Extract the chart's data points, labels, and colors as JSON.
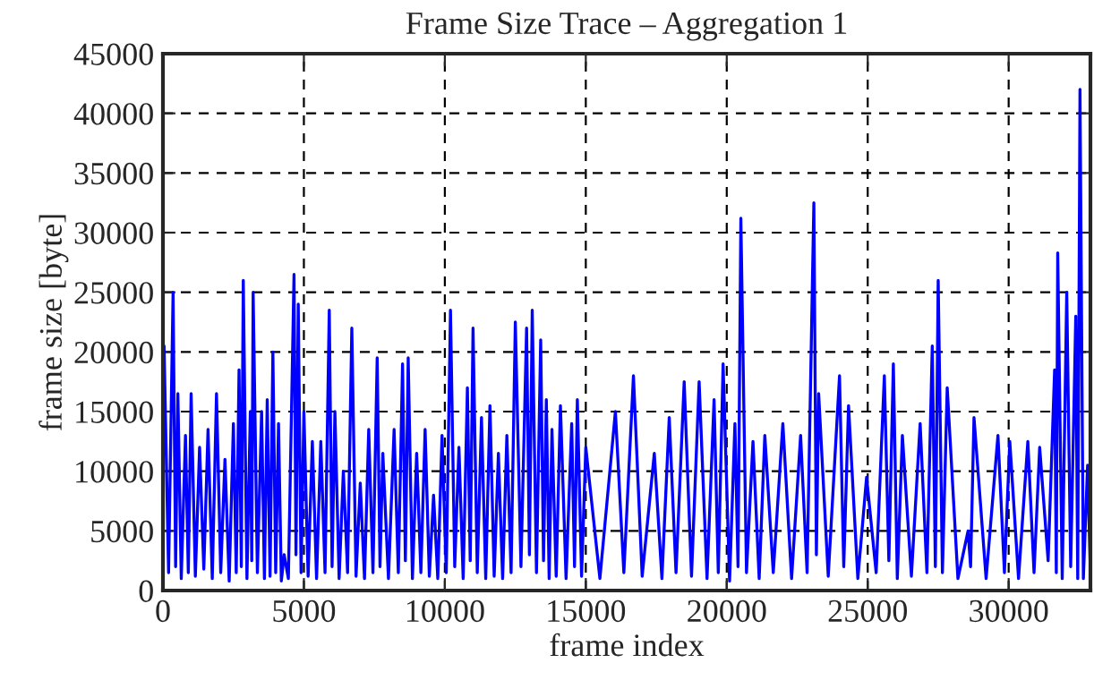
{
  "chart_data": {
    "type": "line",
    "title": "Frame Size Trace – Aggregation 1",
    "xlabel": "frame index",
    "ylabel": "frame size [byte]",
    "x": [
      40,
      200,
      360,
      450,
      530,
      650,
      800,
      900,
      1000,
      1150,
      1300,
      1450,
      1600,
      1750,
      1900,
      2050,
      2200,
      2350,
      2500,
      2600,
      2700,
      2780,
      2850,
      2980,
      3100,
      3150,
      3200,
      3350,
      3500,
      3600,
      3700,
      3800,
      3900,
      4000,
      4100,
      4200,
      4300,
      4450,
      4650,
      4720,
      4800,
      4900,
      5000,
      5150,
      5300,
      5450,
      5600,
      5750,
      5900,
      6000,
      6100,
      6250,
      6400,
      6550,
      6700,
      6850,
      7000,
      7150,
      7300,
      7450,
      7600,
      7700,
      7800,
      8000,
      8200,
      8350,
      8500,
      8600,
      8700,
      8850,
      9000,
      9150,
      9300,
      9450,
      9600,
      9750,
      9900,
      10050,
      10200,
      10350,
      10500,
      10650,
      10800,
      10900,
      11000,
      11150,
      11300,
      11450,
      11600,
      11750,
      11900,
      12050,
      12200,
      12350,
      12500,
      12700,
      12900,
      13000,
      13100,
      13250,
      13400,
      13500,
      13600,
      13700,
      13800,
      13950,
      14100,
      14300,
      14500,
      14600,
      14700,
      14850,
      15000,
      15500,
      16050,
      16350,
      16690,
      17000,
      17430,
      17700,
      17960,
      18200,
      18490,
      18750,
      19020,
      19300,
      19550,
      19700,
      19870,
      20100,
      20290,
      20400,
      20500,
      20700,
      20930,
      21150,
      21350,
      21650,
      21990,
      22300,
      22620,
      22850,
      23090,
      23180,
      23260,
      23600,
      24000,
      24150,
      24320,
      24650,
      24960,
      25300,
      25590,
      25750,
      25910,
      26050,
      26230,
      26550,
      26860,
      27100,
      27290,
      27400,
      27500,
      27650,
      27820,
      28200,
      28560,
      28650,
      28770,
      29200,
      29620,
      29850,
      30040,
      30350,
      30680,
      30900,
      31100,
      31400,
      31630,
      31690,
      31740,
      31900,
      32060,
      32200,
      32380,
      32450,
      32530,
      32650,
      32800,
      32900
    ],
    "series": [
      {
        "color": "#0000ff",
        "values": [
          20500,
          1500,
          25000,
          2000,
          16500,
          1000,
          13000,
          1500,
          16500,
          1200,
          12000,
          1800,
          13500,
          1000,
          16500,
          1500,
          11000,
          800,
          14000,
          1500,
          18500,
          2000,
          26000,
          1000,
          15000,
          2500,
          25000,
          1500,
          15000,
          1000,
          16000,
          1200,
          20000,
          1500,
          14000,
          800,
          3000,
          1000,
          26500,
          3000,
          24000,
          1500,
          15000,
          1200,
          12500,
          1000,
          12500,
          1500,
          23500,
          2000,
          15000,
          1000,
          10000,
          1500,
          22000,
          1200,
          9000,
          1000,
          13500,
          1500,
          19500,
          2000,
          11500,
          1000,
          13500,
          1500,
          19000,
          2500,
          19500,
          1000,
          11500,
          1500,
          13500,
          1200,
          8000,
          1000,
          13000,
          1500,
          23500,
          2000,
          12000,
          1000,
          17000,
          2500,
          22000,
          1500,
          14500,
          1000,
          15500,
          1200,
          11500,
          1000,
          13000,
          1500,
          22500,
          2000,
          22000,
          3000,
          23500,
          1500,
          21000,
          2500,
          16000,
          1000,
          13500,
          1200,
          15500,
          1000,
          14000,
          2000,
          16000,
          1200,
          12000,
          1000,
          15000,
          1500,
          18000,
          1200,
          11500,
          1000,
          14500,
          1500,
          17500,
          1200,
          17500,
          1000,
          16000,
          1500,
          19000,
          800,
          14000,
          2000,
          31200,
          1500,
          12500,
          1000,
          13000,
          1500,
          14000,
          1000,
          13000,
          1500,
          32500,
          3000,
          16500,
          1200,
          18000,
          2000,
          15500,
          1000,
          9500,
          1500,
          18000,
          2500,
          19000,
          1000,
          13000,
          1200,
          14000,
          1500,
          20500,
          2000,
          26000,
          1500,
          17000,
          1000,
          5000,
          2000,
          14500,
          1000,
          13000,
          1500,
          12500,
          1000,
          12500,
          1500,
          12000,
          2500,
          18500,
          1500,
          28300,
          1000,
          25000,
          2000,
          23000,
          1000,
          42000,
          1000,
          10500,
          1500
        ]
      }
    ],
    "xlim": [
      0,
      32900
    ],
    "xticks": [
      0,
      5000,
      10000,
      15000,
      20000,
      25000,
      30000
    ],
    "ylim": [
      0,
      45000
    ],
    "yticks": [
      0,
      5000,
      10000,
      15000,
      20000,
      25000,
      30000,
      35000,
      40000,
      45000
    ],
    "grid": true,
    "legend": false,
    "line_style": "solid"
  }
}
